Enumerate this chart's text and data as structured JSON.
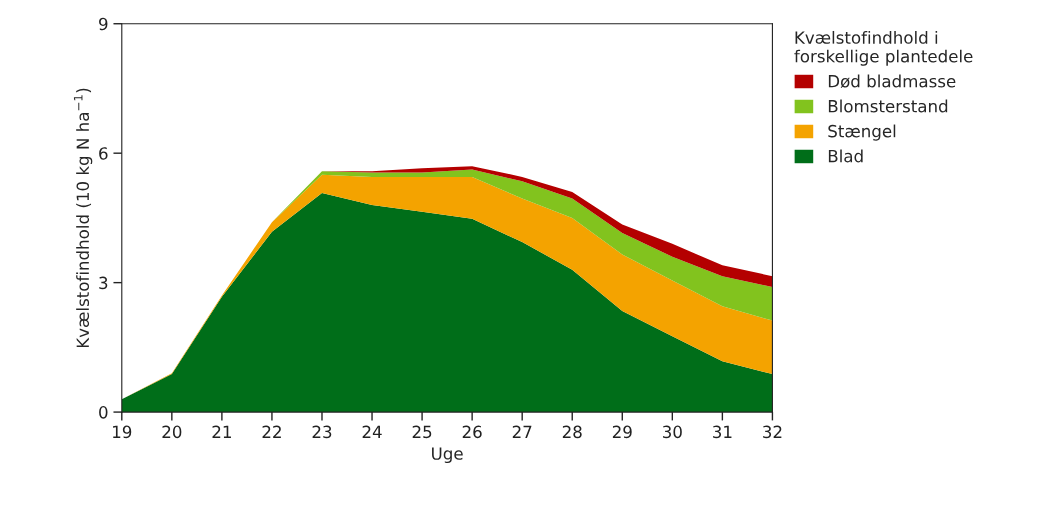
{
  "chart_data": {
    "type": "area",
    "stacked": true,
    "xlabel": "Uge",
    "ylabel": "Kvælstofindhold (10 kg N ha$^{−1}$)",
    "legend_title": "Kvælstofindhold i\nforskellige plantedele",
    "legend": "right",
    "grid": false,
    "x": [
      19,
      20,
      21,
      22,
      23,
      24,
      25,
      26,
      27,
      28,
      29,
      30,
      31,
      32
    ],
    "xlim": [
      19,
      32
    ],
    "xticks": [
      19,
      20,
      21,
      22,
      23,
      24,
      25,
      26,
      27,
      28,
      29,
      30,
      31,
      32
    ],
    "ylim": [
      0,
      9
    ],
    "yticks": [
      0,
      3,
      6,
      9
    ],
    "series": [
      {
        "name": "Blad",
        "color": "#006e19",
        "values": [
          0.3,
          0.88,
          2.67,
          4.18,
          5.08,
          4.8,
          4.64,
          4.48,
          3.94,
          3.3,
          2.34,
          1.76,
          1.18,
          0.88
        ]
      },
      {
        "name": "Stængel",
        "color": "#f4a300",
        "values": [
          0,
          0.02,
          0.03,
          0.22,
          0.42,
          0.65,
          0.81,
          0.97,
          1.01,
          1.2,
          1.31,
          1.29,
          1.27,
          1.24
        ]
      },
      {
        "name": "Blomsterstand",
        "color": "#82c31e",
        "values": [
          0,
          0,
          0,
          0,
          0.08,
          0.1,
          0.1,
          0.17,
          0.4,
          0.45,
          0.5,
          0.55,
          0.7,
          0.78
        ]
      },
      {
        "name": "Død bladmasse",
        "color": "#b40000",
        "values": [
          0,
          0,
          0,
          0,
          0,
          0.03,
          0.1,
          0.08,
          0.1,
          0.15,
          0.2,
          0.3,
          0.25,
          0.25
        ]
      }
    ]
  }
}
